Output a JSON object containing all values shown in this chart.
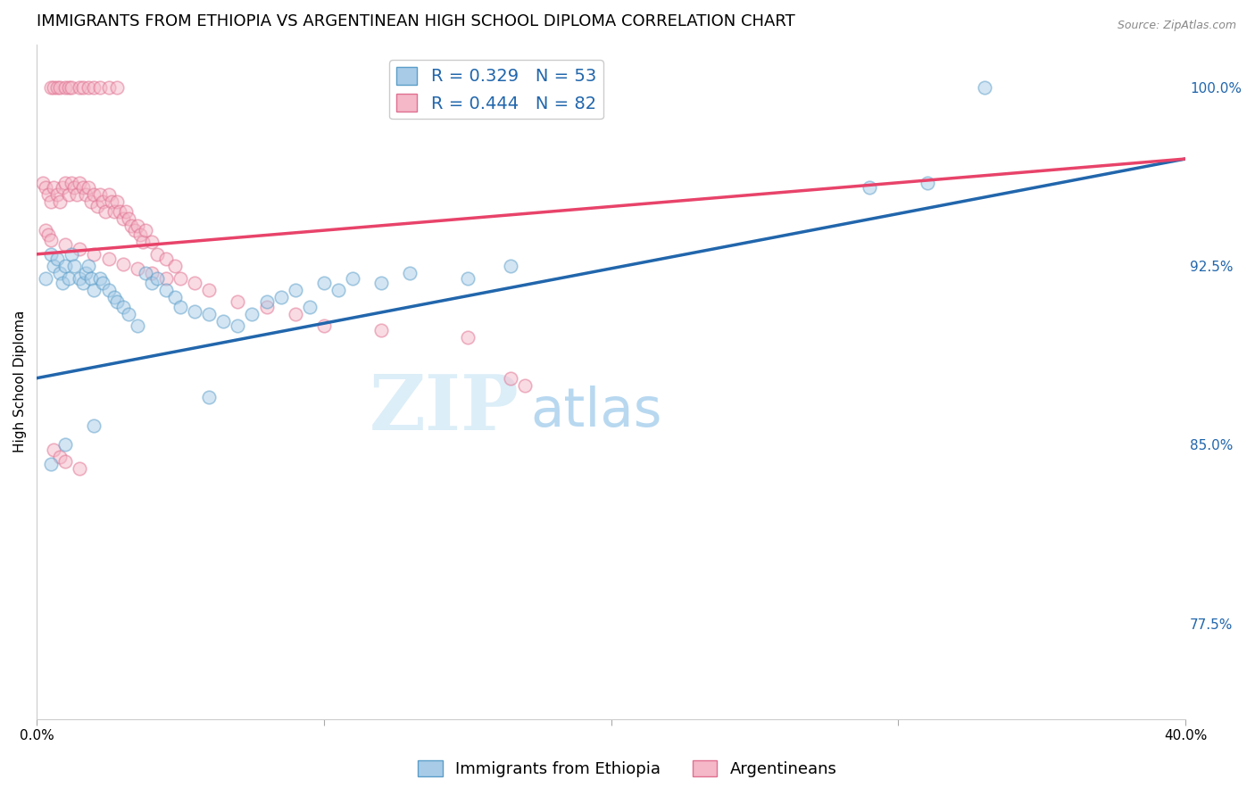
{
  "title": "IMMIGRANTS FROM ETHIOPIA VS ARGENTINEAN HIGH SCHOOL DIPLOMA CORRELATION CHART",
  "source": "Source: ZipAtlas.com",
  "ylabel": "High School Diploma",
  "yticks": [
    0.775,
    0.85,
    0.925,
    1.0
  ],
  "ytick_labels": [
    "77.5%",
    "85.0%",
    "92.5%",
    "100.0%"
  ],
  "xmin": 0.0,
  "xmax": 0.4,
  "ymin": 0.735,
  "ymax": 1.018,
  "blue_color": "#a8cce8",
  "pink_color": "#f4b8c8",
  "blue_edge": "#5b9ec9",
  "pink_edge": "#e07090",
  "line_blue_color": "#2166ac",
  "line_pink_color": "#e8436a",
  "grid_color": "#cccccc",
  "background_color": "#ffffff",
  "title_fontsize": 13,
  "axis_label_fontsize": 11,
  "tick_fontsize": 11,
  "legend_fontsize": 14,
  "dot_size": 110,
  "dot_alpha": 0.5,
  "dot_edgewidth": 1.2,
  "blue_line_x0": 0.0,
  "blue_line_x1": 0.4,
  "blue_line_y0": 0.878,
  "blue_line_y1": 0.97,
  "pink_line_x0": 0.0,
  "pink_line_x1": 0.4,
  "pink_line_y0": 0.93,
  "pink_line_y1": 0.97,
  "scatter_blue_x": [
    0.003,
    0.005,
    0.006,
    0.007,
    0.008,
    0.009,
    0.01,
    0.011,
    0.012,
    0.013,
    0.015,
    0.016,
    0.017,
    0.018,
    0.019,
    0.02,
    0.022,
    0.023,
    0.025,
    0.027,
    0.028,
    0.03,
    0.032,
    0.035,
    0.038,
    0.04,
    0.042,
    0.045,
    0.048,
    0.05,
    0.055,
    0.06,
    0.065,
    0.07,
    0.075,
    0.08,
    0.085,
    0.09,
    0.095,
    0.1,
    0.105,
    0.11,
    0.12,
    0.13,
    0.15,
    0.165,
    0.29,
    0.31,
    0.33,
    0.005,
    0.01,
    0.02,
    0.06
  ],
  "scatter_blue_y": [
    0.92,
    0.93,
    0.925,
    0.928,
    0.922,
    0.918,
    0.925,
    0.92,
    0.93,
    0.925,
    0.92,
    0.918,
    0.922,
    0.925,
    0.92,
    0.915,
    0.92,
    0.918,
    0.915,
    0.912,
    0.91,
    0.908,
    0.905,
    0.9,
    0.922,
    0.918,
    0.92,
    0.915,
    0.912,
    0.908,
    0.906,
    0.905,
    0.902,
    0.9,
    0.905,
    0.91,
    0.912,
    0.915,
    0.908,
    0.918,
    0.915,
    0.92,
    0.918,
    0.922,
    0.92,
    0.925,
    0.958,
    0.96,
    1.0,
    0.842,
    0.85,
    0.858,
    0.87
  ],
  "scatter_pink_x": [
    0.002,
    0.003,
    0.004,
    0.005,
    0.005,
    0.006,
    0.006,
    0.007,
    0.007,
    0.008,
    0.008,
    0.009,
    0.01,
    0.01,
    0.011,
    0.011,
    0.012,
    0.012,
    0.013,
    0.014,
    0.015,
    0.015,
    0.016,
    0.016,
    0.017,
    0.018,
    0.018,
    0.019,
    0.02,
    0.02,
    0.021,
    0.022,
    0.022,
    0.023,
    0.024,
    0.025,
    0.025,
    0.026,
    0.027,
    0.028,
    0.028,
    0.029,
    0.03,
    0.031,
    0.032,
    0.033,
    0.034,
    0.035,
    0.036,
    0.037,
    0.038,
    0.04,
    0.042,
    0.045,
    0.048,
    0.05,
    0.055,
    0.06,
    0.07,
    0.08,
    0.09,
    0.1,
    0.12,
    0.15,
    0.003,
    0.004,
    0.005,
    0.01,
    0.015,
    0.02,
    0.025,
    0.03,
    0.035,
    0.04,
    0.045,
    0.006,
    0.008,
    0.01,
    0.015,
    0.165,
    0.17
  ],
  "scatter_pink_y": [
    0.96,
    0.958,
    0.955,
    0.952,
    1.0,
    0.958,
    1.0,
    0.955,
    1.0,
    0.952,
    1.0,
    0.958,
    0.96,
    1.0,
    0.955,
    1.0,
    0.96,
    1.0,
    0.958,
    0.955,
    0.96,
    1.0,
    0.958,
    1.0,
    0.955,
    0.958,
    1.0,
    0.952,
    0.955,
    1.0,
    0.95,
    0.955,
    1.0,
    0.952,
    0.948,
    0.955,
    1.0,
    0.952,
    0.948,
    0.952,
    1.0,
    0.948,
    0.945,
    0.948,
    0.945,
    0.942,
    0.94,
    0.942,
    0.938,
    0.935,
    0.94,
    0.935,
    0.93,
    0.928,
    0.925,
    0.92,
    0.918,
    0.915,
    0.91,
    0.908,
    0.905,
    0.9,
    0.898,
    0.895,
    0.94,
    0.938,
    0.936,
    0.934,
    0.932,
    0.93,
    0.928,
    0.926,
    0.924,
    0.922,
    0.92,
    0.848,
    0.845,
    0.843,
    0.84,
    0.878,
    0.875
  ]
}
